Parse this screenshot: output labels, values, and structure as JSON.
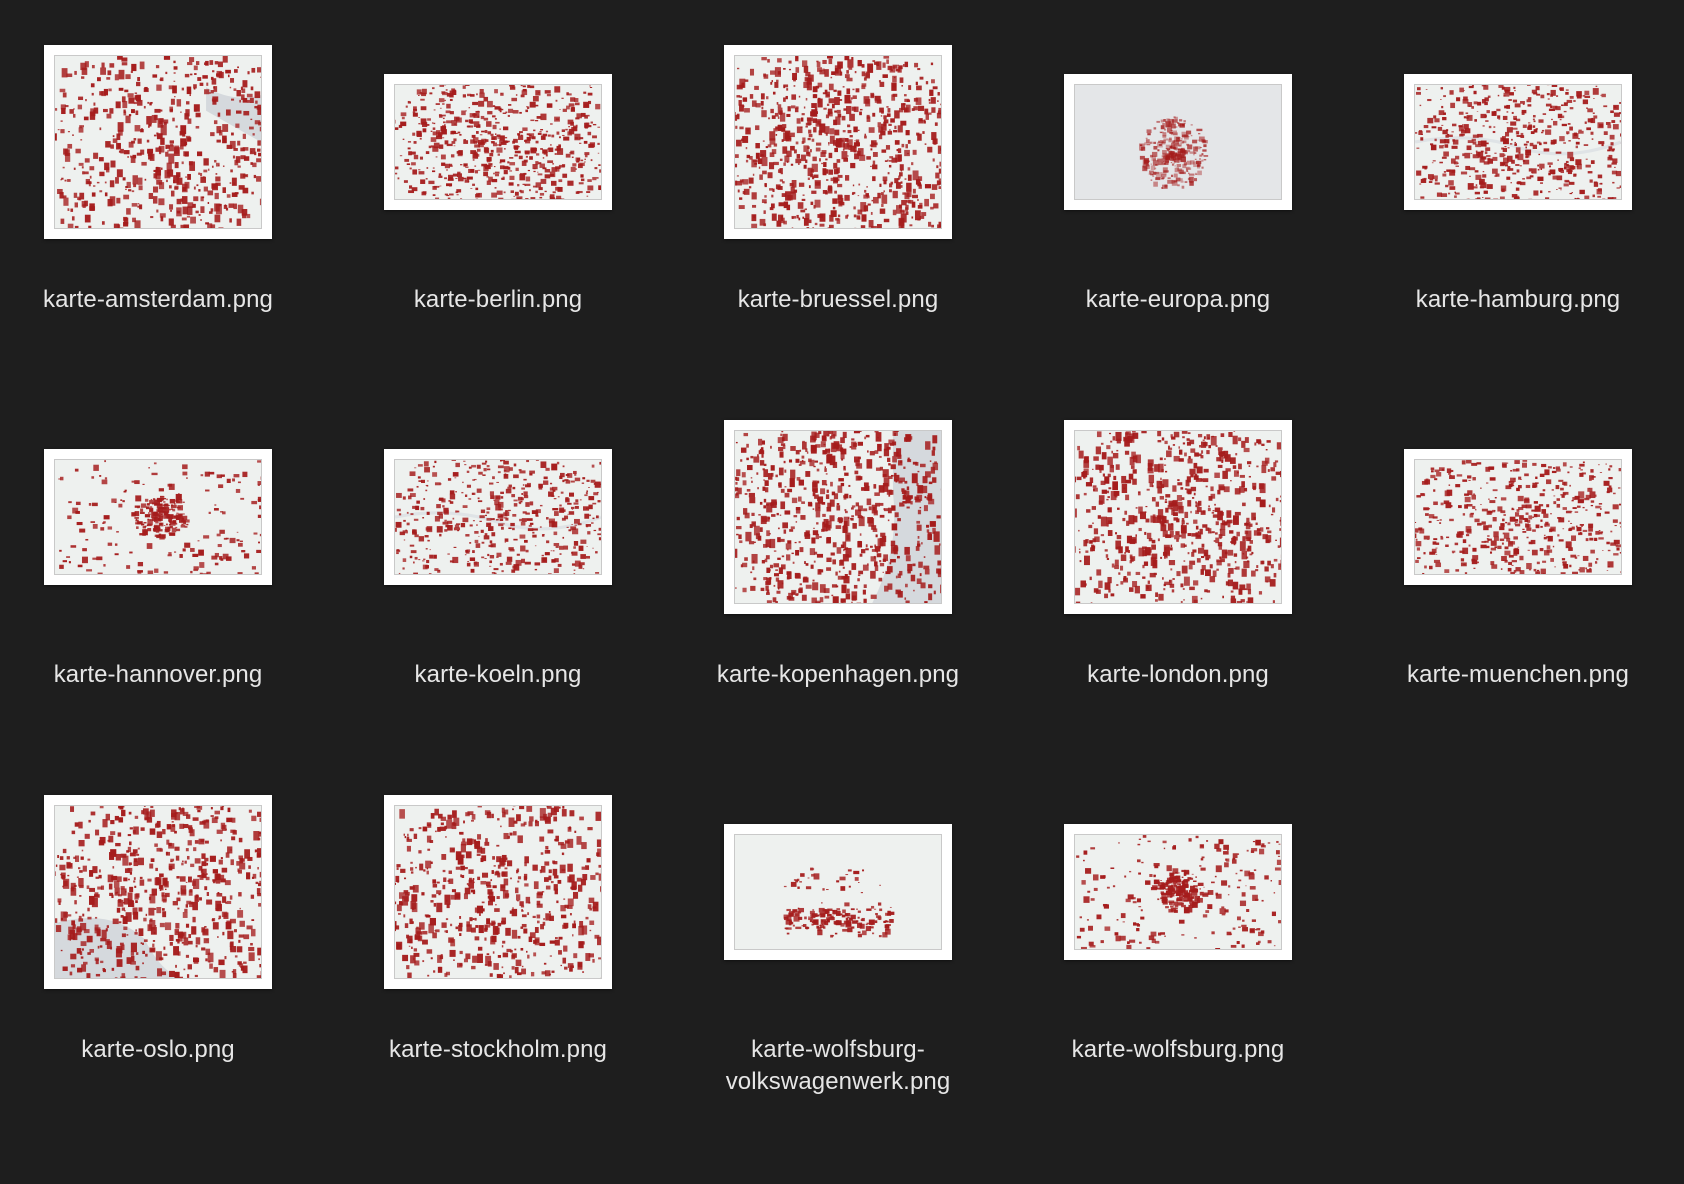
{
  "files": [
    {
      "name": "karte-amsterdam.png",
      "shape": "tall",
      "pattern": "amsterdam",
      "density": 0.62
    },
    {
      "name": "karte-berlin.png",
      "shape": "wide",
      "pattern": "center",
      "density": 0.7
    },
    {
      "name": "karte-bruessel.png",
      "shape": "tall",
      "pattern": "center",
      "density": 0.85
    },
    {
      "name": "karte-europa.png",
      "shape": "wide",
      "pattern": "europe",
      "density": 0.3
    },
    {
      "name": "karte-hamburg.png",
      "shape": "wide",
      "pattern": "river",
      "density": 0.6
    },
    {
      "name": "karte-hannover.png",
      "shape": "wide",
      "pattern": "sparse",
      "density": 0.35
    },
    {
      "name": "karte-koeln.png",
      "shape": "wide",
      "pattern": "river",
      "density": 0.55
    },
    {
      "name": "karte-kopenhagen.png",
      "shape": "tall",
      "pattern": "coast",
      "density": 0.8
    },
    {
      "name": "karte-london.png",
      "shape": "tall",
      "pattern": "center",
      "density": 0.75
    },
    {
      "name": "karte-muenchen.png",
      "shape": "wide",
      "pattern": "center",
      "density": 0.55
    },
    {
      "name": "karte-oslo.png",
      "shape": "tall",
      "pattern": "fjord",
      "density": 0.7
    },
    {
      "name": "karte-stockholm.png",
      "shape": "tall",
      "pattern": "center",
      "density": 0.65
    },
    {
      "name": "karte-wolfsburg-volkswagenwerk.png",
      "label_lines": [
        "karte-wolfsburg-",
        "volkswagenwerk.png"
      ],
      "shape": "wide",
      "pattern": "factory",
      "density": 0.2
    },
    {
      "name": "karte-wolfsburg.png",
      "shape": "wide",
      "pattern": "sparse",
      "density": 0.4
    }
  ],
  "colors": {
    "background": "#1e1e1e",
    "label": "#e6e6e6",
    "map_bg": "#eef1ef",
    "map_water": "#d5d9dd",
    "map_red": "#a51c1c"
  }
}
